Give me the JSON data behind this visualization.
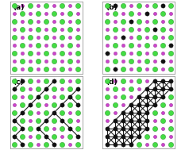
{
  "panels": [
    "(a)",
    "(b)",
    "(c)",
    "(d)"
  ],
  "background": "#ffffff",
  "border_color": "#999999",
  "atom_colors": {
    "Si": "#44dd44",
    "O": "#cc44cc",
    "C": "#111111"
  },
  "Si_size": 4.5,
  "O_size": 3.0,
  "C_size": 3.8,
  "figsize": [
    2.33,
    1.89
  ],
  "dpi": 100,
  "n_cols": 9,
  "n_rows": 9
}
